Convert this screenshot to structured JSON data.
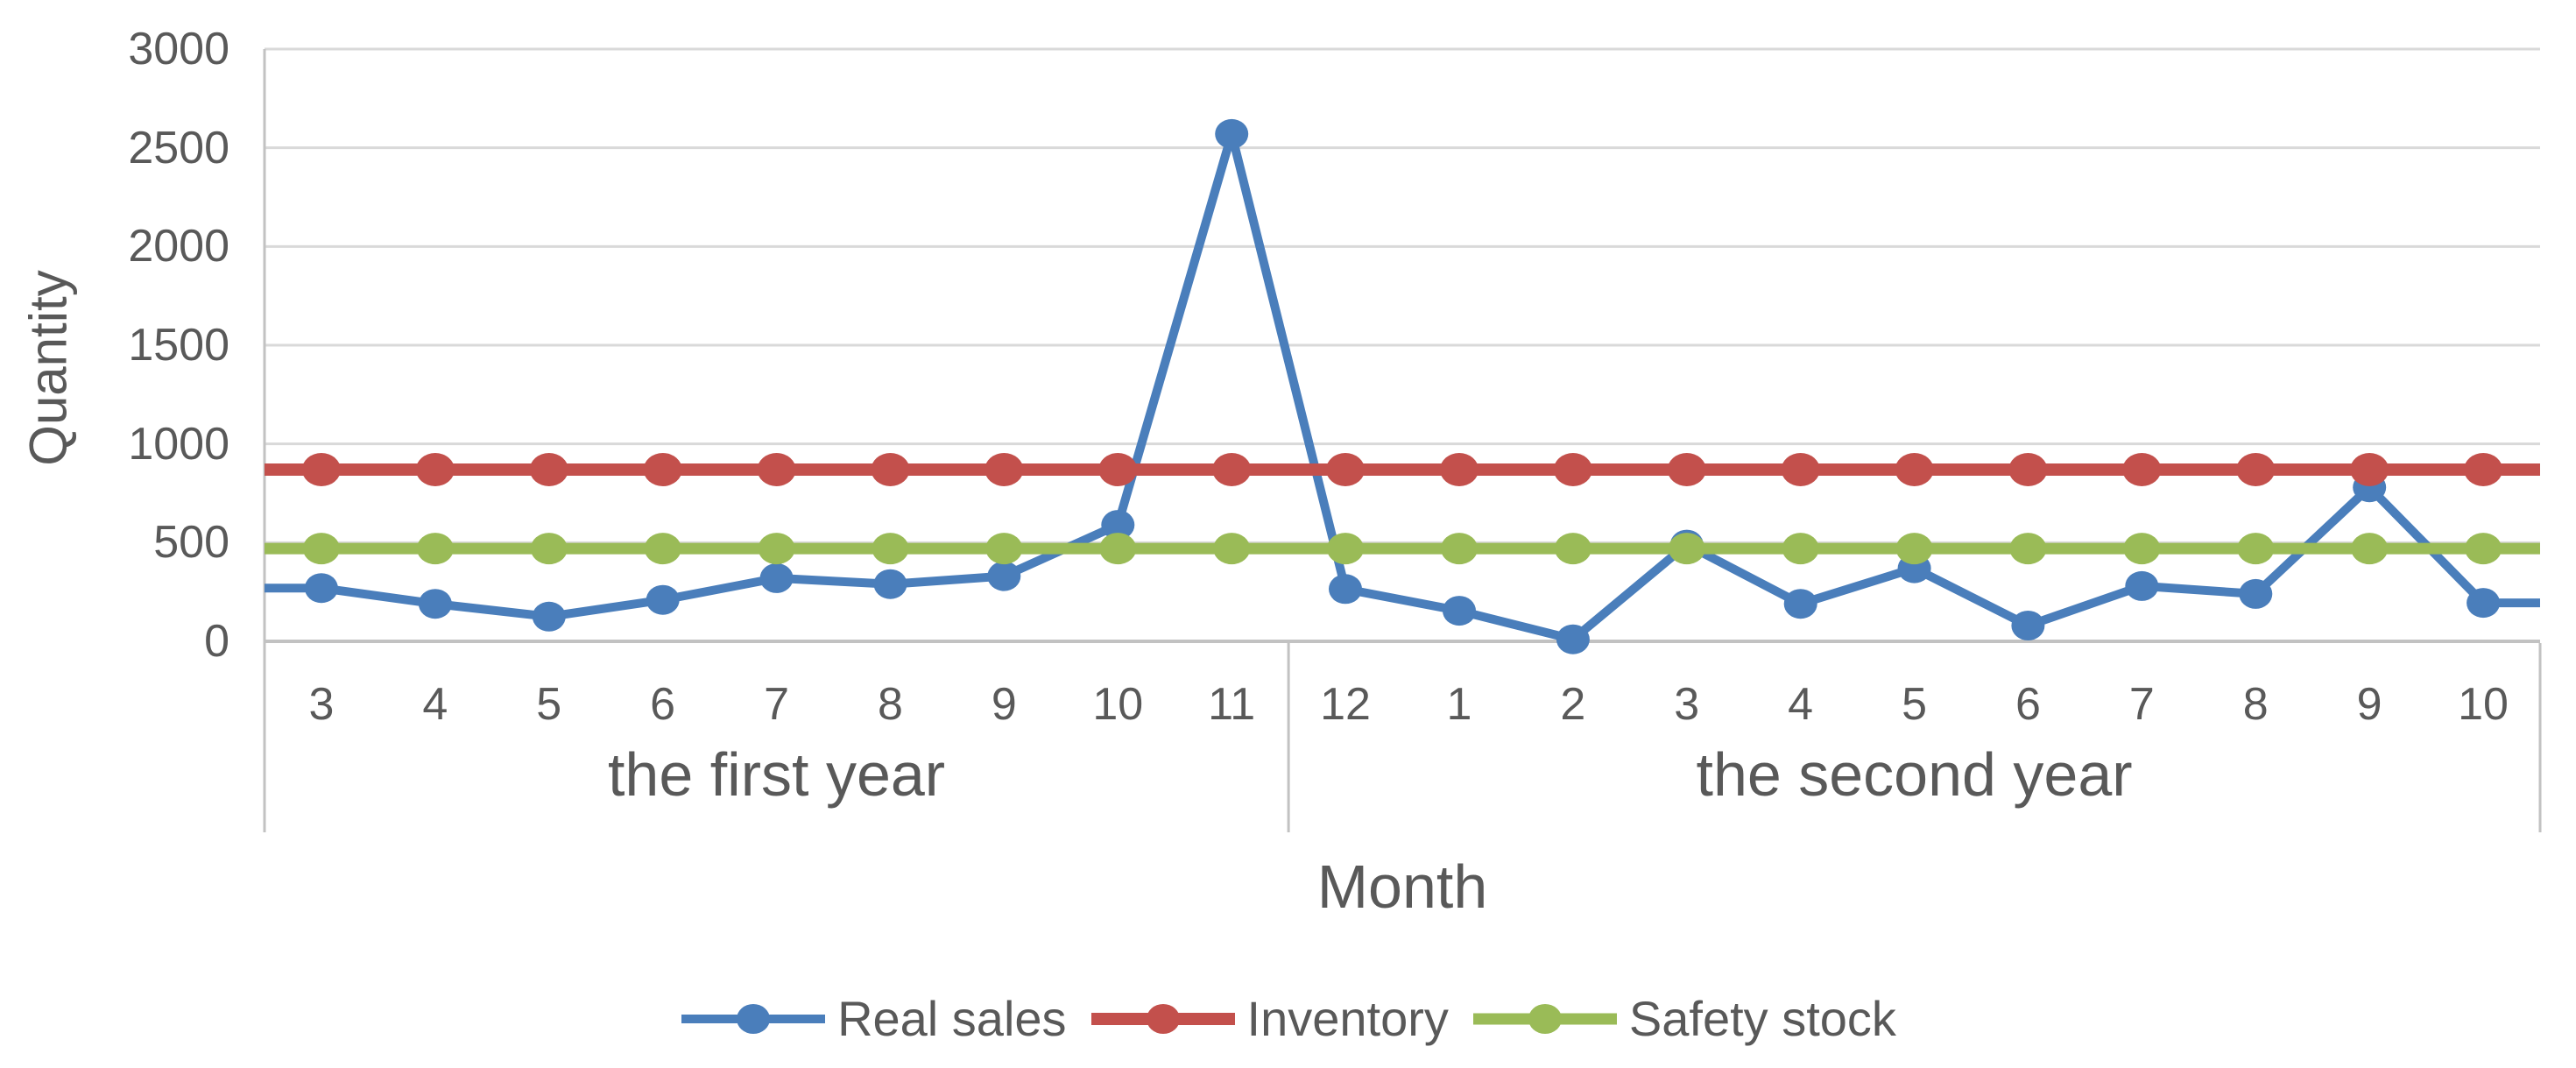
{
  "colors": {
    "real_sales": "#4A7EBB",
    "inventory": "#C3504C",
    "safety_stock": "#9ABB57",
    "gridline": "#D9D9D9",
    "axis_line": "#C2C2C2",
    "text": "#595959"
  },
  "chart_data": {
    "type": "line",
    "title": "",
    "xlabel": "Month",
    "ylabel": "Quantity",
    "ylim": [
      0,
      3000
    ],
    "yticks": [
      0,
      500,
      1000,
      1500,
      2000,
      2500,
      3000
    ],
    "grid": true,
    "legend_position": "bottom",
    "x_groups": [
      {
        "label": "the first year",
        "months": [
          "3",
          "4",
          "5",
          "6",
          "7",
          "8",
          "9",
          "10",
          "11"
        ]
      },
      {
        "label": "the second year",
        "months": [
          "12",
          "1",
          "2",
          "3",
          "4",
          "5",
          "6",
          "7",
          "8",
          "9",
          "10"
        ]
      }
    ],
    "categories": [
      "3",
      "4",
      "5",
      "6",
      "7",
      "8",
      "9",
      "10",
      "11",
      "12",
      "1",
      "2",
      "3",
      "4",
      "5",
      "6",
      "7",
      "8",
      "9",
      "10"
    ],
    "series": [
      {
        "name": "Real sales",
        "color": "#4A7EBB",
        "values": [
          270,
          190,
          125,
          210,
          320,
          290,
          330,
          590,
          2570,
          265,
          155,
          10,
          490,
          190,
          370,
          80,
          280,
          240,
          780,
          195
        ]
      },
      {
        "name": "Inventory",
        "color": "#C3504C",
        "values": [
          870,
          870,
          870,
          870,
          870,
          870,
          870,
          870,
          870,
          870,
          870,
          870,
          870,
          870,
          870,
          870,
          870,
          870,
          870,
          870
        ]
      },
      {
        "name": "Safety stock",
        "color": "#9ABB57",
        "values": [
          470,
          470,
          470,
          470,
          470,
          470,
          470,
          470,
          470,
          470,
          470,
          470,
          470,
          470,
          470,
          470,
          470,
          470,
          470,
          470
        ]
      }
    ]
  }
}
